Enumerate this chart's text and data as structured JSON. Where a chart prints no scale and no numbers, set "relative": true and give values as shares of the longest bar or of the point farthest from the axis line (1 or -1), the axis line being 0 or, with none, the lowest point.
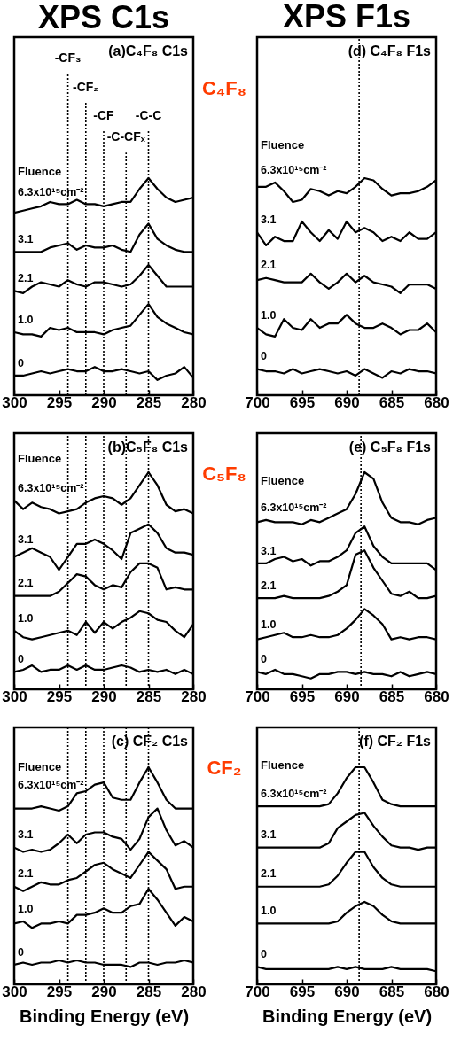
{
  "chart_data": [
    {
      "type": "line",
      "title": "XPS C1s",
      "relative": true,
      "tick_labels": "x",
      "xlim": [
        300,
        280
      ],
      "xticks": [
        300,
        295,
        290,
        285,
        280
      ],
      "annotations": [
        "(a)C₄F₈ C1s",
        "Fluence",
        "C₄F₈"
      ],
      "ref_lines": [
        {
          "axis": "x",
          "value": 294,
          "label": "-CF₃",
          "line_style": "dotted"
        },
        {
          "axis": "x",
          "value": 292,
          "label": "-CF₂",
          "line_style": "dotted"
        },
        {
          "axis": "x",
          "value": 290,
          "label": "-CF",
          "line_style": "dotted"
        },
        {
          "axis": "x",
          "value": 287.5,
          "label": "-C-CFₓ",
          "line_style": "dotted"
        },
        {
          "axis": "x",
          "value": 285,
          "label": "-C-C",
          "line_style": "dotted"
        }
      ],
      "x": [
        300,
        299,
        298,
        297,
        296,
        295,
        294,
        293,
        292,
        291,
        290,
        289,
        288,
        287,
        286,
        285,
        284,
        283,
        282,
        281,
        280
      ],
      "series": [
        {
          "name": "6.3x10¹⁵cm⁻²",
          "color": "#000000",
          "values": [
            0.84,
            0.85,
            0.86,
            0.87,
            0.89,
            0.88,
            0.88,
            0.9,
            0.88,
            0.88,
            0.87,
            0.88,
            0.89,
            0.89,
            0.95,
            1.0,
            0.95,
            0.91,
            0.89,
            0.9,
            0.91
          ]
        },
        {
          "name": "3.1",
          "color": "#000000",
          "values": [
            0.66,
            0.66,
            0.66,
            0.66,
            0.68,
            0.69,
            0.7,
            0.67,
            0.69,
            0.68,
            0.68,
            0.69,
            0.67,
            0.66,
            0.74,
            0.79,
            0.72,
            0.69,
            0.67,
            0.66,
            0.66
          ]
        },
        {
          "name": "2.1",
          "color": "#000000",
          "values": [
            0.48,
            0.47,
            0.5,
            0.52,
            0.51,
            0.5,
            0.53,
            0.51,
            0.5,
            0.52,
            0.52,
            0.51,
            0.5,
            0.51,
            0.55,
            0.6,
            0.55,
            0.5,
            0.5,
            0.5,
            0.5
          ]
        },
        {
          "name": "1.0",
          "color": "#000000",
          "values": [
            0.29,
            0.28,
            0.28,
            0.27,
            0.31,
            0.3,
            0.31,
            0.29,
            0.29,
            0.29,
            0.28,
            0.3,
            0.31,
            0.32,
            0.37,
            0.42,
            0.36,
            0.33,
            0.31,
            0.29,
            0.28
          ]
        },
        {
          "name": "0",
          "color": "#000000",
          "values": [
            0.09,
            0.09,
            0.1,
            0.11,
            0.1,
            0.11,
            0.12,
            0.11,
            0.11,
            0.13,
            0.11,
            0.11,
            0.12,
            0.11,
            0.1,
            0.11,
            0.07,
            0.09,
            0.1,
            0.13,
            0.08
          ]
        }
      ]
    },
    {
      "type": "line",
      "title": "XPS F1s",
      "relative": true,
      "tick_labels": "x",
      "xlim": [
        700,
        680
      ],
      "xticks": [
        700,
        695,
        690,
        685,
        680
      ],
      "annotations": [
        "(d) C₄F₈ F1s",
        "Fluence"
      ],
      "ref_lines": [
        {
          "axis": "x",
          "value": 688.6,
          "line_style": "dotted"
        }
      ],
      "x": [
        700,
        699,
        698,
        697,
        696,
        695,
        694,
        693,
        692,
        691,
        690,
        689,
        688,
        687,
        686,
        685,
        684,
        683,
        682,
        681,
        680
      ],
      "series": [
        {
          "name": "6.3x10¹⁵cm⁻²",
          "color": "#000000",
          "values": [
            0.96,
            0.96,
            0.98,
            0.94,
            0.89,
            0.9,
            0.95,
            0.94,
            0.92,
            0.94,
            0.93,
            0.96,
            1.0,
            0.99,
            0.95,
            0.92,
            0.93,
            0.93,
            0.94,
            0.96,
            0.99
          ]
        },
        {
          "name": "3.1",
          "color": "#000000",
          "values": [
            0.75,
            0.69,
            0.73,
            0.71,
            0.71,
            0.8,
            0.75,
            0.71,
            0.76,
            0.72,
            0.8,
            0.75,
            0.77,
            0.75,
            0.71,
            0.73,
            0.71,
            0.75,
            0.72,
            0.72,
            0.75
          ]
        },
        {
          "name": "2.1",
          "color": "#000000",
          "values": [
            0.53,
            0.54,
            0.53,
            0.52,
            0.52,
            0.52,
            0.56,
            0.52,
            0.49,
            0.52,
            0.56,
            0.52,
            0.55,
            0.52,
            0.51,
            0.5,
            0.47,
            0.51,
            0.51,
            0.51,
            0.49
          ]
        },
        {
          "name": "1.0",
          "color": "#000000",
          "values": [
            0.31,
            0.28,
            0.27,
            0.35,
            0.31,
            0.3,
            0.35,
            0.31,
            0.33,
            0.33,
            0.37,
            0.33,
            0.31,
            0.31,
            0.33,
            0.31,
            0.28,
            0.3,
            0.3,
            0.33,
            0.29
          ]
        },
        {
          "name": "0",
          "color": "#000000",
          "values": [
            0.12,
            0.11,
            0.11,
            0.1,
            0.12,
            0.1,
            0.11,
            0.12,
            0.11,
            0.1,
            0.11,
            0.09,
            0.12,
            0.1,
            0.08,
            0.11,
            0.1,
            0.12,
            0.11,
            0.11,
            0.1
          ]
        }
      ]
    },
    {
      "type": "line",
      "relative": true,
      "tick_labels": "x",
      "xlim": [
        300,
        280
      ],
      "xticks": [
        300,
        295,
        290,
        285,
        280
      ],
      "annotations": [
        "(b)C₅F₈ C1s",
        "Fluence",
        "C₅F₈"
      ],
      "ref_lines": [
        {
          "axis": "x",
          "value": 294,
          "line_style": "dotted"
        },
        {
          "axis": "x",
          "value": 292,
          "line_style": "dotted"
        },
        {
          "axis": "x",
          "value": 290,
          "line_style": "dotted"
        },
        {
          "axis": "x",
          "value": 287.5,
          "line_style": "dotted"
        },
        {
          "axis": "x",
          "value": 285,
          "line_style": "dotted"
        }
      ],
      "x": [
        300,
        299,
        298,
        297,
        296,
        295,
        294,
        293,
        292,
        291,
        290,
        289,
        288,
        287,
        286,
        285,
        284,
        283,
        282,
        281,
        280
      ],
      "series": [
        {
          "name": "6.3x10¹⁵cm⁻²",
          "color": "#000000",
          "values": [
            0.87,
            0.83,
            0.86,
            0.84,
            0.83,
            0.81,
            0.82,
            0.83,
            0.86,
            0.88,
            0.89,
            0.88,
            0.85,
            0.88,
            0.94,
            1.0,
            0.94,
            0.85,
            0.82,
            0.83,
            0.81
          ]
        },
        {
          "name": "3.1",
          "color": "#000000",
          "values": [
            0.61,
            0.63,
            0.65,
            0.63,
            0.61,
            0.55,
            0.61,
            0.67,
            0.67,
            0.69,
            0.67,
            0.64,
            0.6,
            0.72,
            0.74,
            0.76,
            0.72,
            0.65,
            0.63,
            0.63,
            0.62
          ]
        },
        {
          "name": "2.1",
          "color": "#000000",
          "values": [
            0.43,
            0.43,
            0.43,
            0.43,
            0.43,
            0.45,
            0.49,
            0.53,
            0.52,
            0.48,
            0.46,
            0.48,
            0.47,
            0.54,
            0.58,
            0.58,
            0.56,
            0.46,
            0.47,
            0.46,
            0.46
          ]
        },
        {
          "name": "1.0",
          "color": "#000000",
          "values": [
            0.27,
            0.24,
            0.23,
            0.24,
            0.25,
            0.26,
            0.27,
            0.25,
            0.31,
            0.26,
            0.31,
            0.28,
            0.31,
            0.33,
            0.36,
            0.35,
            0.32,
            0.31,
            0.27,
            0.24,
            0.3
          ]
        },
        {
          "name": "0",
          "color": "#000000",
          "values": [
            0.08,
            0.09,
            0.11,
            0.08,
            0.09,
            0.09,
            0.11,
            0.09,
            0.11,
            0.09,
            0.09,
            0.1,
            0.11,
            0.1,
            0.08,
            0.09,
            0.08,
            0.09,
            0.07,
            0.09,
            0.07
          ]
        }
      ]
    },
    {
      "type": "line",
      "relative": true,
      "tick_labels": "x",
      "xlim": [
        700,
        680
      ],
      "xticks": [
        700,
        695,
        690,
        685,
        680
      ],
      "annotations": [
        "(e) C₅F₈ F1s",
        "Fluence"
      ],
      "ref_lines": [
        {
          "axis": "x",
          "value": 688.4,
          "line_style": "dotted"
        }
      ],
      "x": [
        700,
        699,
        698,
        697,
        696,
        695,
        694,
        693,
        692,
        691,
        690,
        689,
        688,
        687,
        686,
        685,
        684,
        683,
        682,
        681,
        680
      ],
      "series": [
        {
          "name": "6.3x10¹⁵cm⁻²",
          "color": "#000000",
          "values": [
            0.77,
            0.78,
            0.77,
            0.77,
            0.77,
            0.76,
            0.78,
            0.77,
            0.79,
            0.81,
            0.83,
            0.9,
            1.0,
            0.97,
            0.86,
            0.79,
            0.77,
            0.77,
            0.76,
            0.78,
            0.79
          ]
        },
        {
          "name": "3.1",
          "color": "#000000",
          "values": [
            0.58,
            0.58,
            0.6,
            0.61,
            0.59,
            0.6,
            0.57,
            0.59,
            0.59,
            0.61,
            0.64,
            0.72,
            0.75,
            0.66,
            0.61,
            0.58,
            0.58,
            0.58,
            0.58,
            0.58,
            0.55
          ]
        },
        {
          "name": "2.1",
          "color": "#000000",
          "values": [
            0.42,
            0.42,
            0.42,
            0.43,
            0.42,
            0.42,
            0.42,
            0.42,
            0.43,
            0.45,
            0.48,
            0.62,
            0.64,
            0.56,
            0.5,
            0.44,
            0.43,
            0.45,
            0.42,
            0.42,
            0.43
          ]
        },
        {
          "name": "1.0",
          "color": "#000000",
          "values": [
            0.23,
            0.24,
            0.25,
            0.26,
            0.24,
            0.24,
            0.25,
            0.24,
            0.24,
            0.25,
            0.28,
            0.32,
            0.37,
            0.34,
            0.3,
            0.23,
            0.24,
            0.23,
            0.24,
            0.24,
            0.23
          ]
        },
        {
          "name": "0",
          "color": "#000000",
          "values": [
            0.08,
            0.07,
            0.09,
            0.07,
            0.07,
            0.06,
            0.05,
            0.07,
            0.07,
            0.08,
            0.08,
            0.07,
            0.08,
            0.07,
            0.07,
            0.06,
            0.08,
            0.06,
            0.07,
            0.08,
            0.07
          ]
        }
      ]
    },
    {
      "type": "line",
      "relative": true,
      "tick_labels": "x",
      "xlim": [
        300,
        280
      ],
      "xticks": [
        300,
        295,
        290,
        285,
        280
      ],
      "xlabel": "Binding Energy (eV)",
      "annotations": [
        "(c) CF₂ C1s",
        "Fluence",
        "CF₂"
      ],
      "ref_lines": [
        {
          "axis": "x",
          "value": 294,
          "line_style": "dotted"
        },
        {
          "axis": "x",
          "value": 292,
          "line_style": "dotted"
        },
        {
          "axis": "x",
          "value": 290,
          "line_style": "dotted"
        },
        {
          "axis": "x",
          "value": 287.5,
          "line_style": "dotted"
        },
        {
          "axis": "x",
          "value": 285,
          "line_style": "dotted"
        }
      ],
      "x": [
        300,
        299,
        298,
        297,
        296,
        295,
        294,
        293,
        292,
        291,
        290,
        289,
        288,
        287,
        286,
        285,
        284,
        283,
        282,
        281,
        280
      ],
      "series": [
        {
          "name": "6.3x10¹⁵cm⁻²",
          "color": "#000000",
          "values": [
            0.81,
            0.81,
            0.81,
            0.82,
            0.81,
            0.8,
            0.82,
            0.88,
            0.89,
            0.92,
            0.93,
            0.86,
            0.85,
            0.85,
            0.93,
            1.0,
            0.93,
            0.85,
            0.81,
            0.81,
            0.81
          ]
        },
        {
          "name": "3.1",
          "color": "#000000",
          "values": [
            0.63,
            0.61,
            0.62,
            0.61,
            0.62,
            0.65,
            0.69,
            0.65,
            0.69,
            0.7,
            0.7,
            0.68,
            0.67,
            0.62,
            0.67,
            0.77,
            0.81,
            0.71,
            0.64,
            0.66,
            0.63
          ]
        },
        {
          "name": "2.1",
          "color": "#000000",
          "values": [
            0.45,
            0.43,
            0.45,
            0.47,
            0.46,
            0.46,
            0.48,
            0.49,
            0.52,
            0.55,
            0.56,
            0.53,
            0.51,
            0.49,
            0.55,
            0.61,
            0.57,
            0.53,
            0.44,
            0.45,
            0.45
          ]
        },
        {
          "name": "1.0",
          "color": "#000000",
          "values": [
            0.28,
            0.29,
            0.26,
            0.28,
            0.28,
            0.29,
            0.28,
            0.32,
            0.32,
            0.33,
            0.35,
            0.33,
            0.33,
            0.36,
            0.37,
            0.44,
            0.39,
            0.33,
            0.27,
            0.31,
            0.29
          ]
        },
        {
          "name": "0",
          "color": "#000000",
          "values": [
            0.09,
            0.1,
            0.09,
            0.1,
            0.1,
            0.11,
            0.1,
            0.11,
            0.1,
            0.1,
            0.09,
            0.09,
            0.09,
            0.08,
            0.1,
            0.1,
            0.09,
            0.1,
            0.1,
            0.11,
            0.1
          ]
        }
      ]
    },
    {
      "type": "line",
      "relative": true,
      "tick_labels": "x",
      "xlim": [
        700,
        680
      ],
      "xticks": [
        700,
        695,
        690,
        685,
        680
      ],
      "xlabel": "Binding Energy (eV)",
      "annotations": [
        "(f) CF₂ F1s",
        "Fluence"
      ],
      "ref_lines": [
        {
          "axis": "x",
          "value": 688.6,
          "line_style": "dotted"
        }
      ],
      "x": [
        700,
        699,
        698,
        697,
        696,
        695,
        694,
        693,
        692,
        691,
        690,
        689,
        688,
        687,
        686,
        685,
        684,
        683,
        682,
        681,
        680
      ],
      "series": [
        {
          "name": "6.3x10¹⁵cm⁻²",
          "color": "#000000",
          "values": [
            0.82,
            0.82,
            0.82,
            0.82,
            0.82,
            0.82,
            0.82,
            0.82,
            0.83,
            0.88,
            0.95,
            1.0,
            1.0,
            0.93,
            0.85,
            0.83,
            0.82,
            0.82,
            0.82,
            0.82,
            0.82
          ]
        },
        {
          "name": "3.1",
          "color": "#000000",
          "values": [
            0.63,
            0.63,
            0.63,
            0.63,
            0.63,
            0.63,
            0.63,
            0.63,
            0.65,
            0.72,
            0.75,
            0.78,
            0.79,
            0.73,
            0.68,
            0.64,
            0.63,
            0.63,
            0.62,
            0.63,
            0.63
          ]
        },
        {
          "name": "2.1",
          "color": "#000000",
          "values": [
            0.45,
            0.45,
            0.45,
            0.45,
            0.45,
            0.45,
            0.45,
            0.45,
            0.46,
            0.5,
            0.56,
            0.61,
            0.61,
            0.54,
            0.49,
            0.46,
            0.45,
            0.45,
            0.45,
            0.45,
            0.45
          ]
        },
        {
          "name": "1.0",
          "color": "#000000",
          "values": [
            0.28,
            0.28,
            0.28,
            0.28,
            0.28,
            0.28,
            0.28,
            0.28,
            0.28,
            0.29,
            0.33,
            0.36,
            0.38,
            0.36,
            0.32,
            0.29,
            0.28,
            0.28,
            0.28,
            0.28,
            0.28
          ]
        },
        {
          "name": "0",
          "color": "#000000",
          "values": [
            0.08,
            0.07,
            0.07,
            0.07,
            0.07,
            0.07,
            0.07,
            0.07,
            0.07,
            0.08,
            0.07,
            0.08,
            0.07,
            0.07,
            0.07,
            0.08,
            0.07,
            0.07,
            0.07,
            0.07,
            0.06
          ]
        }
      ]
    }
  ]
}
